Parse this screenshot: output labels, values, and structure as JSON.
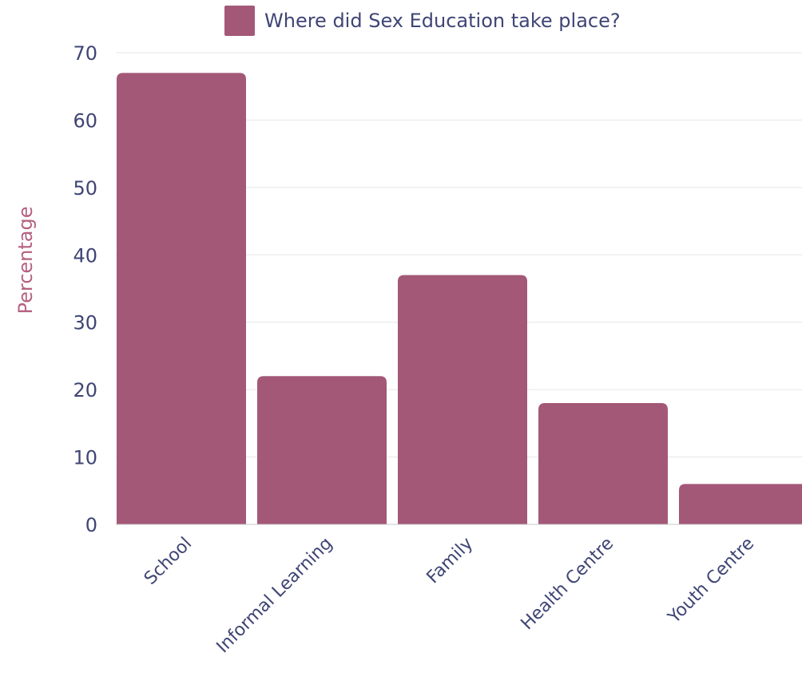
{
  "chart_data": {
    "type": "bar",
    "categories": [
      "School",
      "Informal Learning",
      "Family",
      "Health Centre",
      "Youth Centre"
    ],
    "series": [
      {
        "name": "Where did Sex Education take place?",
        "values": [
          67,
          22,
          37,
          18,
          6
        ]
      }
    ],
    "xlabel": "",
    "ylabel": "Percentage",
    "ylim": [
      0,
      70
    ],
    "yticks": [
      0,
      10,
      20,
      30,
      40,
      50,
      60,
      70
    ],
    "grid": true,
    "legend_position": "top-center",
    "colors": {
      "bar": "#a35877",
      "text": "#3f4575",
      "ylabel": "#b5607f",
      "grid": "#e6e6e6",
      "axis": "#c8c8c8"
    }
  }
}
